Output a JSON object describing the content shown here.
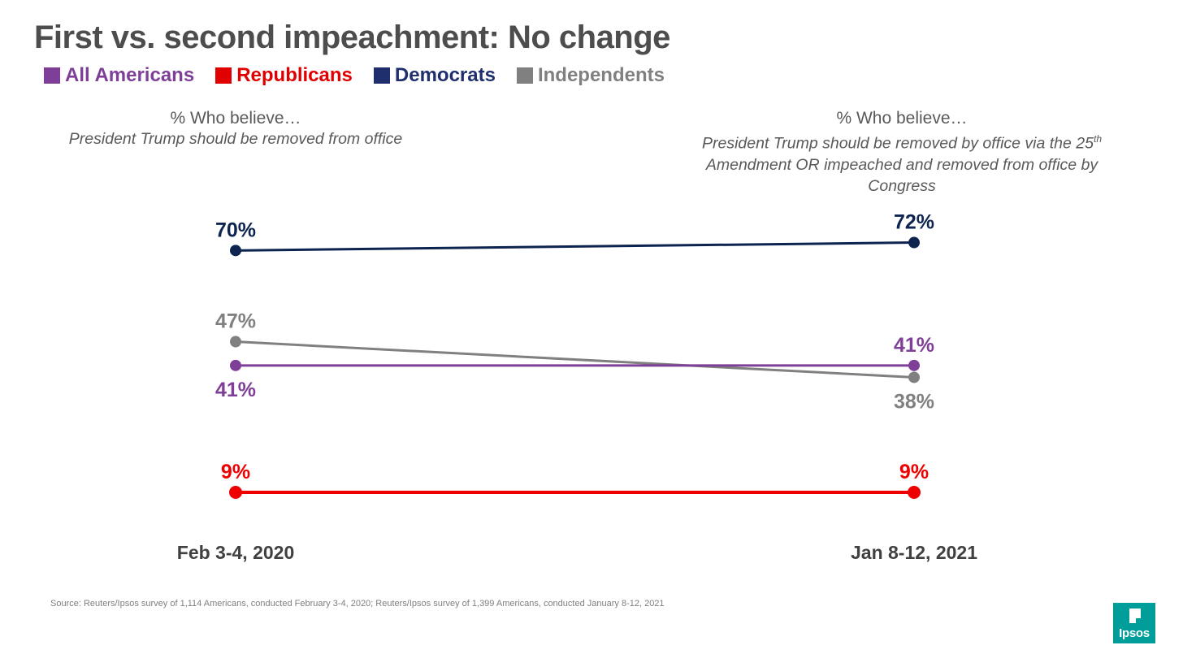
{
  "title": "First vs. second impeachment: No change",
  "legend": [
    {
      "label": "All Americans",
      "color": "#7f3f98"
    },
    {
      "label": "Republicans",
      "color": "#e00000"
    },
    {
      "label": "Democrats",
      "color": "#1f2f6e"
    },
    {
      "label": "Independents",
      "color": "#808080"
    }
  ],
  "subheads": {
    "left": {
      "lead": "% Who believe…",
      "desc": "President Trump should be removed from office"
    },
    "right": {
      "lead": "% Who believe…",
      "desc_line1": "President Trump should be removed by office via the 25",
      "desc_sup": "th",
      "desc_line2": "Amendment OR impeached and removed from office by",
      "desc_line3": "Congress"
    }
  },
  "chart_data": {
    "type": "line",
    "title": "First vs. second impeachment: No change",
    "xlabel": "",
    "ylabel": "",
    "ylim": [
      0,
      100
    ],
    "categories": [
      "Feb 3-4, 2020",
      "Jan 8-12, 2021"
    ],
    "series": [
      {
        "name": "Democrats",
        "values": [
          70,
          72
        ],
        "labels": [
          "70%",
          "72%"
        ],
        "color": "#0d2350",
        "label_pos": [
          "above",
          "above"
        ]
      },
      {
        "name": "Independents",
        "values": [
          47,
          38
        ],
        "labels": [
          "47%",
          "38%"
        ],
        "color": "#808080",
        "label_pos": [
          "above",
          "below"
        ]
      },
      {
        "name": "All Americans",
        "values": [
          41,
          41
        ],
        "labels": [
          "41%",
          "41%"
        ],
        "color": "#7f3f98",
        "label_pos": [
          "below",
          "above"
        ]
      },
      {
        "name": "Republicans",
        "values": [
          9,
          9
        ],
        "labels": [
          "9%",
          "9%"
        ],
        "color": "#ee0000",
        "label_pos": [
          "above",
          "above"
        ]
      }
    ]
  },
  "source": "Source: Reuters/Ipsos survey of 1,114 Americans, conducted February 3-4, 2020; Reuters/Ipsos survey of 1,399 Americans, conducted January 8-12, 2021",
  "logo": {
    "text": "Ipsos"
  }
}
